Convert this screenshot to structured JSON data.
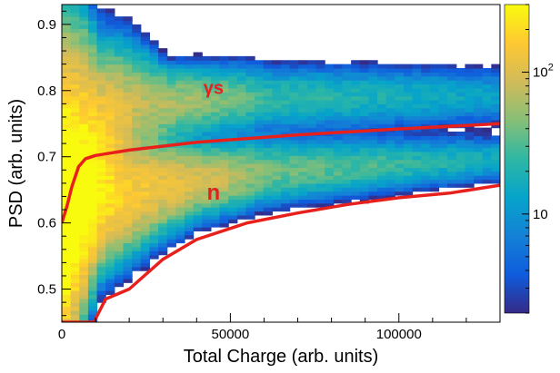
{
  "chart_data": {
    "type": "heatmap",
    "title": "",
    "xlabel": "Total Charge (arb. units)",
    "ylabel": "PSD (arb. units)",
    "xlim": [
      0,
      130000
    ],
    "ylim": [
      0.45,
      0.93
    ],
    "x_ticks": [
      0,
      50000,
      100000
    ],
    "y_ticks": [
      0.5,
      0.6,
      0.7,
      0.8,
      0.9
    ],
    "colorbar": {
      "scale": "log",
      "range": [
        2,
        300
      ],
      "ticks": [
        {
          "value": 10,
          "label": "10"
        },
        {
          "value": 100,
          "label": "10",
          "exponent": "2"
        }
      ],
      "colors": [
        "#352a87",
        "#0f5cdd",
        "#1481d6",
        "#06a4ca",
        "#2eb7a4",
        "#87bf77",
        "#d1bb59",
        "#fec832",
        "#f9fb0e"
      ]
    },
    "bands": [
      {
        "name": "γs",
        "center": [
          [
            0,
            0.66
          ],
          [
            5000,
            0.71
          ],
          [
            20000,
            0.775
          ],
          [
            50000,
            0.785
          ],
          [
            130000,
            0.79
          ]
        ],
        "width": [
          [
            0,
            0.24
          ],
          [
            10000,
            0.13
          ],
          [
            30000,
            0.055
          ],
          [
            130000,
            0.045
          ]
        ],
        "peak_counts": [
          [
            0,
            250
          ],
          [
            20000,
            80
          ],
          [
            60000,
            25
          ],
          [
            130000,
            12
          ]
        ]
      },
      {
        "name": "n",
        "center": [
          [
            0,
            0.6
          ],
          [
            10000,
            0.63
          ],
          [
            30000,
            0.655
          ],
          [
            60000,
            0.675
          ],
          [
            130000,
            0.695
          ]
        ],
        "width": [
          [
            0,
            0.2
          ],
          [
            10000,
            0.1
          ],
          [
            40000,
            0.055
          ],
          [
            130000,
            0.035
          ]
        ],
        "peak_counts": [
          [
            0,
            300
          ],
          [
            20000,
            150
          ],
          [
            60000,
            40
          ],
          [
            130000,
            15
          ]
        ]
      }
    ],
    "separation_curves": [
      {
        "name": "upper",
        "color": "#e8201c",
        "points": [
          [
            0,
            0.6
          ],
          [
            1500,
            0.625
          ],
          [
            3000,
            0.655
          ],
          [
            5000,
            0.685
          ],
          [
            7000,
            0.697
          ],
          [
            10000,
            0.702
          ],
          [
            20000,
            0.71
          ],
          [
            40000,
            0.722
          ],
          [
            70000,
            0.733
          ],
          [
            100000,
            0.742
          ],
          [
            130000,
            0.75
          ]
        ]
      },
      {
        "name": "lower",
        "color": "#e8201c",
        "points": [
          [
            0,
            0.45
          ],
          [
            9500,
            0.45
          ],
          [
            13000,
            0.485
          ],
          [
            20000,
            0.5
          ],
          [
            30000,
            0.545
          ],
          [
            40000,
            0.575
          ],
          [
            55000,
            0.6
          ],
          [
            70000,
            0.615
          ],
          [
            85000,
            0.628
          ],
          [
            100000,
            0.638
          ],
          [
            115000,
            0.645
          ],
          [
            130000,
            0.657
          ]
        ]
      }
    ],
    "annotations": [
      {
        "text": "γs",
        "x": 45000,
        "y": 0.795
      },
      {
        "text": "n",
        "x": 45000,
        "y": 0.635
      }
    ],
    "grid": false,
    "legend": "none"
  }
}
